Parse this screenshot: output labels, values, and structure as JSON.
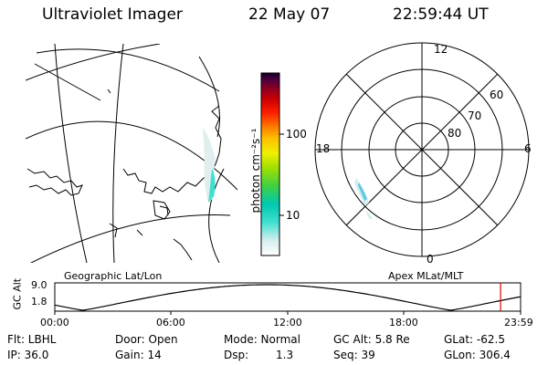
{
  "header": {
    "instrument": "Ultraviolet Imager",
    "date": "22 May 07",
    "time": "22:59:44 UT"
  },
  "colorbar": {
    "unit_label": "photon cm⁻²s⁻¹",
    "tick_100": "100",
    "tick_10": "10",
    "colors": [
      "#ffffff",
      "#d8f0f0",
      "#40e0d0",
      "#00c8c8",
      "#40d040",
      "#a0e000",
      "#f0f000",
      "#ffc000",
      "#ff8000",
      "#ff2000",
      "#e00000",
      "#a00000",
      "#800040",
      "#400040",
      "#000000"
    ]
  },
  "geo_map": {
    "label": "Geographic Lat/Lon"
  },
  "polar_plot": {
    "label": "Apex MLat/MLT",
    "mlt_labels": {
      "top": "12",
      "left": "18",
      "right": "6",
      "bottom": "0"
    },
    "lat_labels": {
      "l60": "60",
      "l70": "70",
      "l80": "80"
    }
  },
  "orbit_plot": {
    "ylabel": "GC Alt",
    "ytick_top": "9.0",
    "ytick_bottom": "1.8",
    "x_ticks": [
      "00:00",
      "06:00",
      "12:00",
      "18:00",
      "23:59"
    ],
    "current_time_fraction": 0.957
  },
  "status": {
    "flt": "Flt: LBHL",
    "ip": "IP: 36.0",
    "door": "Door: Open",
    "gain": "Gain: 14",
    "mode": "Mode: Normal",
    "dsp_label": "Dsp:",
    "dsp_value": "1.3",
    "gc_alt": "GC Alt: 5.8 Re",
    "seq": "Seq: 39",
    "glat": "GLat: -62.5",
    "glon": "GLon: 306.4"
  }
}
